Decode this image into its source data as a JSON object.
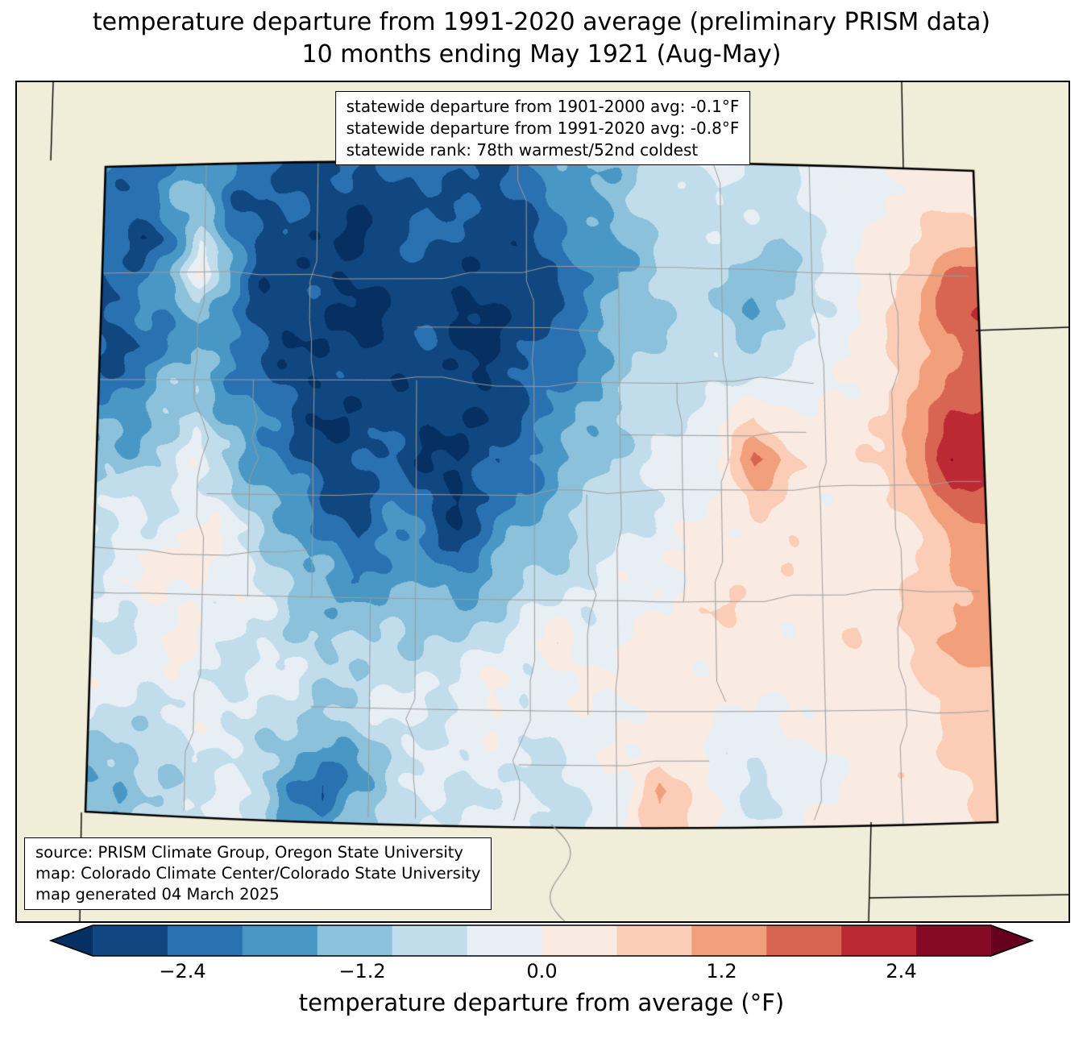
{
  "title": {
    "line1": "temperature departure from 1991-2020 average (preliminary PRISM data)",
    "line2": "10 months ending May 1921 (Aug-May)"
  },
  "stats_box": {
    "lines": [
      "statewide departure from 1901-2000 avg: -0.1°F",
      "statewide departure from 1991-2020 avg: -0.8°F",
      "statewide rank: 78th warmest/52nd coldest"
    ]
  },
  "source_box": {
    "lines": [
      "source: PRISM Climate Group, Oregon State University",
      "map: Colorado Climate Center/Colorado State University",
      "map generated 04 March 2025"
    ]
  },
  "colorbar": {
    "label": "temperature departure from average (°F)",
    "range": [
      -3,
      3
    ],
    "bin_size": 0.5,
    "colors": [
      "#104780",
      "#2a71b2",
      "#4997c5",
      "#8bc1db",
      "#c1ddeb",
      "#e7eff4",
      "#f9ebe2",
      "#fbcdb6",
      "#f29f7b",
      "#d86551",
      "#bb2a33",
      "#860a24"
    ],
    "under_color": "#053061",
    "over_color": "#67001f",
    "ticks": [
      {
        "value": -2.4,
        "label": "−2.4"
      },
      {
        "value": -1.2,
        "label": "−1.2"
      },
      {
        "value": 0.0,
        "label": "0.0"
      },
      {
        "value": 1.2,
        "label": "1.2"
      },
      {
        "value": 2.4,
        "label": "2.4"
      }
    ]
  },
  "map": {
    "region": "Colorado",
    "background_color": "#f0edd8",
    "county_line_color": "#9b9b9b",
    "state_outline_color": "#000000"
  },
  "chart_data": {
    "type": "heatmap",
    "title": "temperature departure from 1991-2020 average, 10 months ending May 1921 (Aug-May)",
    "units": "°F departure from average",
    "value_range": [
      -3,
      3
    ],
    "levels_step": 0.5,
    "orientation": "rows north to south, columns west to east across Colorado",
    "grid": [
      [
        -1.8,
        -2.0,
        -2.2,
        -1.6,
        -2.0,
        -2.4,
        -2.6,
        -2.2,
        -2.8,
        -2.4,
        -2.0,
        -2.4,
        -2.6,
        -2.2,
        -1.8,
        -1.2,
        -1.4,
        -1.0,
        -0.6,
        -0.4,
        -0.5,
        -0.6,
        -0.3,
        -0.2,
        0.0,
        0.1,
        0.2,
        0.3
      ],
      [
        -2.0,
        -2.4,
        -1.8,
        -1.2,
        -2.2,
        -2.6,
        -2.4,
        -2.8,
        -3.0,
        -2.6,
        -2.4,
        -2.8,
        -2.6,
        -2.4,
        -2.0,
        -1.6,
        -1.2,
        -0.8,
        -0.6,
        -0.5,
        -0.6,
        -0.8,
        -0.4,
        -0.2,
        0.0,
        0.2,
        0.4,
        0.4
      ],
      [
        -2.4,
        -2.8,
        -2.2,
        -0.8,
        -1.8,
        -2.8,
        -3.0,
        -2.6,
        -3.1,
        -2.8,
        -2.2,
        -2.6,
        -2.9,
        -2.6,
        -2.2,
        -1.8,
        -1.4,
        -1.0,
        -0.7,
        -0.5,
        -0.8,
        -1.0,
        -0.5,
        -0.2,
        0.1,
        0.4,
        0.8,
        1.0
      ],
      [
        -2.6,
        -2.2,
        -1.4,
        -0.3,
        -1.6,
        -2.6,
        -2.8,
        -3.0,
        -2.8,
        -3.0,
        -2.6,
        -2.8,
        -3.1,
        -2.8,
        -2.4,
        -1.9,
        -1.5,
        -1.1,
        -0.8,
        -0.7,
        -1.2,
        -1.4,
        -0.6,
        -0.2,
        0.2,
        0.8,
        1.6,
        1.8
      ],
      [
        -2.8,
        -2.4,
        -1.8,
        -1.0,
        -2.0,
        -2.8,
        -2.6,
        -3.1,
        -3.0,
        -2.8,
        -2.8,
        -3.0,
        -3.1,
        -2.9,
        -2.5,
        -2.0,
        -1.4,
        -1.0,
        -0.8,
        -1.0,
        -1.6,
        -1.1,
        -0.5,
        -0.1,
        0.3,
        0.9,
        1.8,
        2.0
      ],
      [
        -2.4,
        -2.6,
        -2.0,
        -1.4,
        -2.2,
        -2.6,
        -2.8,
        -2.9,
        -3.1,
        -2.9,
        -2.6,
        -2.9,
        -3.0,
        -2.7,
        -2.3,
        -1.8,
        -1.3,
        -0.9,
        -0.7,
        -0.8,
        -0.9,
        -0.7,
        -0.4,
        0.0,
        0.3,
        0.8,
        1.4,
        1.6
      ],
      [
        -2.0,
        -2.2,
        -1.6,
        -1.0,
        -1.8,
        -2.4,
        -2.7,
        -3.0,
        -2.8,
        -2.6,
        -2.8,
        -3.0,
        -2.9,
        -2.5,
        -2.0,
        -1.6,
        -1.2,
        -0.8,
        -0.6,
        -0.5,
        -0.4,
        -0.3,
        -0.2,
        0.1,
        0.4,
        0.9,
        1.6,
        1.8
      ],
      [
        -1.8,
        -1.6,
        -1.2,
        -0.8,
        -1.4,
        -2.2,
        -2.6,
        -2.8,
        -3.0,
        -2.7,
        -2.9,
        -3.1,
        -2.8,
        -2.4,
        -1.9,
        -1.4,
        -1.0,
        -0.7,
        -0.4,
        -0.1,
        0.5,
        0.3,
        0.2,
        0.2,
        0.6,
        1.2,
        2.2,
        2.4
      ],
      [
        -1.4,
        -1.2,
        -0.9,
        -0.5,
        -1.0,
        -1.8,
        -2.4,
        -2.9,
        -2.7,
        -2.5,
        -2.8,
        -3.0,
        -2.6,
        -2.2,
        -1.7,
        -1.2,
        -0.9,
        -0.6,
        -0.3,
        0.2,
        1.8,
        0.7,
        0.3,
        0.3,
        0.7,
        1.4,
        2.4,
        2.2
      ],
      [
        -1.0,
        -0.8,
        -0.6,
        -0.3,
        -0.8,
        -1.4,
        -2.0,
        -2.6,
        -2.4,
        -2.2,
        -2.6,
        -3.1,
        -2.4,
        -1.9,
        -1.4,
        -1.0,
        -0.7,
        -0.4,
        -0.2,
        0.1,
        0.7,
        0.4,
        0.2,
        0.2,
        0.4,
        0.9,
        1.8,
        2.0
      ],
      [
        -0.6,
        -0.4,
        -0.3,
        0.2,
        -0.4,
        -0.9,
        -1.5,
        -2.2,
        -2.6,
        -2.0,
        -2.2,
        -2.8,
        -2.0,
        -1.5,
        -1.1,
        -0.8,
        -0.5,
        -0.3,
        -0.1,
        0.1,
        0.3,
        0.4,
        0.2,
        0.1,
        0.0,
        0.6,
        1.2,
        1.4
      ],
      [
        -0.4,
        -0.2,
        0.0,
        0.5,
        -0.2,
        -0.6,
        -1.2,
        -1.8,
        -2.2,
        -1.6,
        -1.8,
        -2.2,
        -1.6,
        -1.1,
        -0.8,
        -0.6,
        -0.3,
        -0.1,
        0.2,
        0.3,
        0.4,
        0.3,
        0.2,
        0.3,
        0.2,
        0.5,
        1.0,
        1.2
      ],
      [
        -0.5,
        -0.3,
        -0.1,
        0.2,
        -0.3,
        -0.5,
        -0.9,
        -1.4,
        -1.6,
        -1.2,
        -1.3,
        -1.5,
        -1.0,
        -0.7,
        -0.5,
        -0.4,
        -0.2,
        0.1,
        0.3,
        0.4,
        0.3,
        0.2,
        0.3,
        0.4,
        0.3,
        0.6,
        1.1,
        1.2
      ],
      [
        -0.6,
        -0.4,
        -0.2,
        0.0,
        -0.4,
        -0.6,
        -0.8,
        -1.0,
        -1.2,
        -0.8,
        -0.9,
        -1.0,
        -0.7,
        -0.3,
        0.5,
        -0.1,
        0.0,
        0.2,
        0.4,
        0.3,
        0.2,
        0.1,
        0.2,
        0.5,
        0.4,
        0.7,
        1.2,
        1.3
      ],
      [
        -0.4,
        -0.3,
        -0.1,
        -0.2,
        -0.5,
        -0.4,
        -0.6,
        -0.8,
        -0.9,
        -0.6,
        -0.5,
        -0.7,
        0.4,
        -0.2,
        -0.3,
        0.0,
        0.2,
        0.3,
        0.2,
        0.1,
        0.0,
        0.2,
        0.3,
        0.4,
        0.3,
        0.5,
        0.9,
        1.0
      ],
      [
        -0.5,
        -0.6,
        -0.4,
        -0.3,
        -0.6,
        -0.5,
        -0.8,
        -1.0,
        -0.7,
        -0.5,
        -0.4,
        -0.3,
        -0.2,
        -0.4,
        -0.2,
        -0.1,
        0.1,
        0.2,
        0.1,
        0.0,
        -0.2,
        0.1,
        0.2,
        0.3,
        0.2,
        0.4,
        0.7,
        0.8
      ],
      [
        -0.8,
        -1.2,
        -0.8,
        -0.5,
        -0.4,
        -0.6,
        -1.2,
        -2.0,
        -1.4,
        -0.8,
        -0.5,
        -0.4,
        -0.3,
        -0.5,
        -0.4,
        -0.2,
        0.0,
        0.3,
        0.2,
        -0.3,
        -0.5,
        -0.2,
        0.1,
        0.2,
        0.3,
        0.4,
        0.6,
        0.7
      ],
      [
        -1.4,
        -1.6,
        -1.0,
        -0.6,
        -0.5,
        -0.8,
        -1.8,
        -2.6,
        -1.6,
        -0.9,
        -0.6,
        -0.5,
        -0.4,
        -0.6,
        -0.8,
        -0.4,
        -0.1,
        1.4,
        0.2,
        -0.3,
        -0.6,
        -0.4,
        0.0,
        0.2,
        0.3,
        0.4,
        0.5,
        0.6
      ],
      [
        -1.0,
        -1.2,
        -0.8,
        -0.5,
        -0.4,
        -0.6,
        -1.4,
        -2.0,
        -1.2,
        -0.7,
        -0.5,
        -0.4,
        -0.3,
        -0.5,
        -0.6,
        -0.3,
        0.0,
        0.8,
        0.4,
        -0.2,
        -0.4,
        -0.2,
        0.1,
        0.2,
        0.3,
        0.4,
        0.4,
        0.5
      ]
    ]
  }
}
